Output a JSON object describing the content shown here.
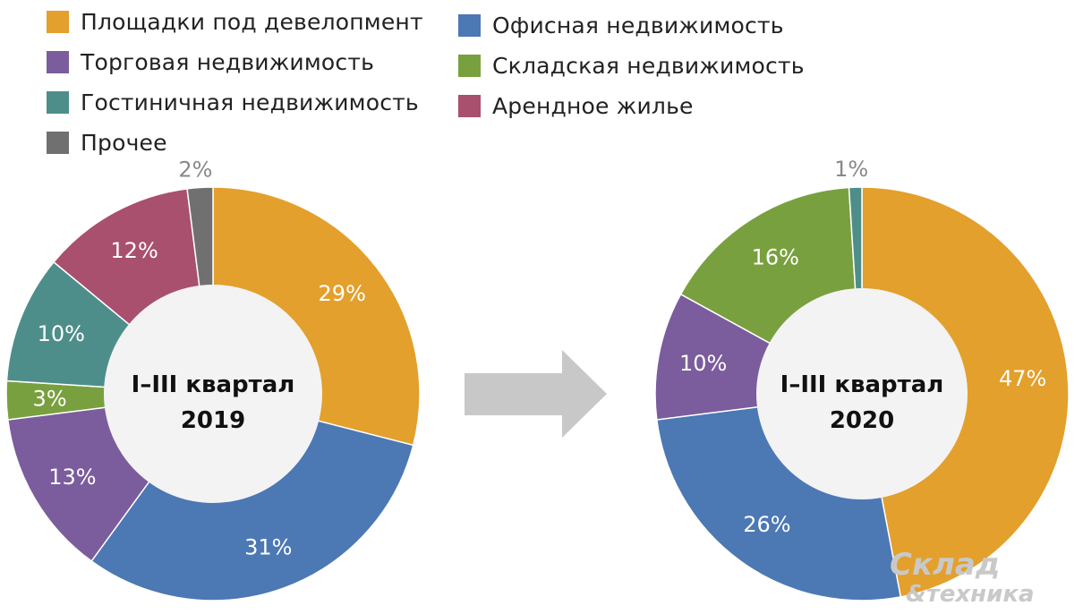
{
  "chart_data": {
    "type": "pie",
    "legend": [
      {
        "key": "dev",
        "label": "Площадки под девелопмент",
        "color": "#E3A02C"
      },
      {
        "key": "office",
        "label": "Офисная недвижимость",
        "color": "#4C78B4"
      },
      {
        "key": "retail",
        "label": "Торговая недвижимость",
        "color": "#7B5C9C"
      },
      {
        "key": "warehouse",
        "label": "Складская недвижимость",
        "color": "#79A03E"
      },
      {
        "key": "hotel",
        "label": "Гостиничная недвижимость",
        "color": "#4E8E8A"
      },
      {
        "key": "rental",
        "label": "Арендное жилье",
        "color": "#A9506E"
      },
      {
        "key": "other",
        "label": "Прочее",
        "color": "#707070"
      }
    ],
    "charts": [
      {
        "center_line1": "I–III квартал",
        "center_line2": "2019",
        "slices": [
          {
            "key": "dev",
            "value": 29,
            "label": "29%"
          },
          {
            "key": "office",
            "value": 31,
            "label": "31%"
          },
          {
            "key": "retail",
            "value": 13,
            "label": "13%"
          },
          {
            "key": "warehouse",
            "value": 3,
            "label": "3%"
          },
          {
            "key": "hotel",
            "value": 10,
            "label": "10%"
          },
          {
            "key": "rental",
            "value": 12,
            "label": "12%"
          },
          {
            "key": "other",
            "value": 2,
            "label": "2%"
          }
        ]
      },
      {
        "center_line1": "I–III квартал",
        "center_line2": "2020",
        "slices": [
          {
            "key": "dev",
            "value": 47,
            "label": "47%"
          },
          {
            "key": "office",
            "value": 26,
            "label": "26%"
          },
          {
            "key": "retail",
            "value": 10,
            "label": "10%"
          },
          {
            "key": "warehouse",
            "value": 16,
            "label": "16%"
          },
          {
            "key": "hotel",
            "value": 1,
            "label": "1%"
          }
        ]
      }
    ]
  },
  "watermark": {
    "line1": "Склад",
    "line2": "&техника"
  }
}
